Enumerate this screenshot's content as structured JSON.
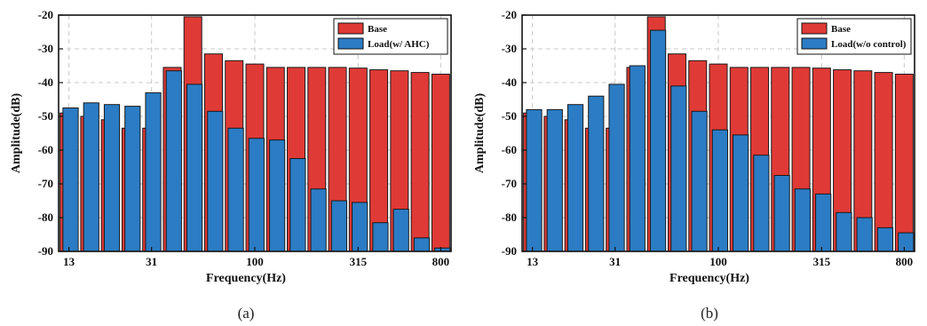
{
  "colors": {
    "base": "#e03a36",
    "load": "#2b7cc4",
    "edge": "#1a1a1a",
    "grid": "#c8c8c8"
  },
  "chart_data": [
    {
      "type": "bar",
      "caption": "(a)",
      "xlabel": "Frequency(Hz)",
      "ylabel": "Amplitude(dB)",
      "ylim": [
        -90,
        -20
      ],
      "yticks": [
        -20,
        -30,
        -40,
        -50,
        -60,
        -70,
        -80,
        -90
      ],
      "xtick_labels": [
        "13",
        "31",
        "100",
        "315",
        "800"
      ],
      "xtick_indices": [
        0,
        4,
        9,
        14,
        18
      ],
      "grid": true,
      "legend_position": "top-right",
      "series": [
        {
          "name": "Base",
          "color": "#e03a36",
          "values": [
            -49,
            -50,
            -51,
            -53.5,
            -53.5,
            -35.5,
            -20.5,
            -31.5,
            -33.5,
            -34.5,
            -35.5,
            -35.5,
            -35.5,
            -35.5,
            -35.7,
            -36.2,
            -36.5,
            -37,
            -37.5
          ]
        },
        {
          "name": "Load(w/ AHC)",
          "color": "#2b7cc4",
          "values": [
            -47.5,
            -46,
            -46.5,
            -47,
            -43,
            -36.5,
            -40.5,
            -48.5,
            -53.5,
            -56.5,
            -57,
            -62.5,
            -71.5,
            -75,
            -75.5,
            -81.5,
            -77.5,
            -86,
            -89
          ]
        }
      ]
    },
    {
      "type": "bar",
      "caption": "(b)",
      "xlabel": "Frequency(Hz)",
      "ylabel": "Amplitude(dB)",
      "ylim": [
        -90,
        -20
      ],
      "yticks": [
        -20,
        -30,
        -40,
        -50,
        -60,
        -70,
        -80,
        -90
      ],
      "xtick_labels": [
        "13",
        "31",
        "100",
        "315",
        "800"
      ],
      "xtick_indices": [
        0,
        4,
        9,
        14,
        18
      ],
      "grid": true,
      "legend_position": "top-right",
      "series": [
        {
          "name": "Base",
          "color": "#e03a36",
          "values": [
            -49,
            -50,
            -51,
            -53.5,
            -53.5,
            -35.5,
            -20.5,
            -31.5,
            -33.5,
            -34.5,
            -35.5,
            -35.5,
            -35.5,
            -35.5,
            -35.7,
            -36.2,
            -36.5,
            -37,
            -37.5
          ]
        },
        {
          "name": "Load(w/o control)",
          "color": "#2b7cc4",
          "values": [
            -48,
            -48,
            -46.5,
            -44,
            -40.5,
            -35,
            -24.5,
            -41,
            -48.5,
            -54,
            -55.5,
            -61.5,
            -67.5,
            -71.5,
            -73,
            -78.5,
            -80,
            -83,
            -84.5
          ]
        }
      ]
    }
  ]
}
